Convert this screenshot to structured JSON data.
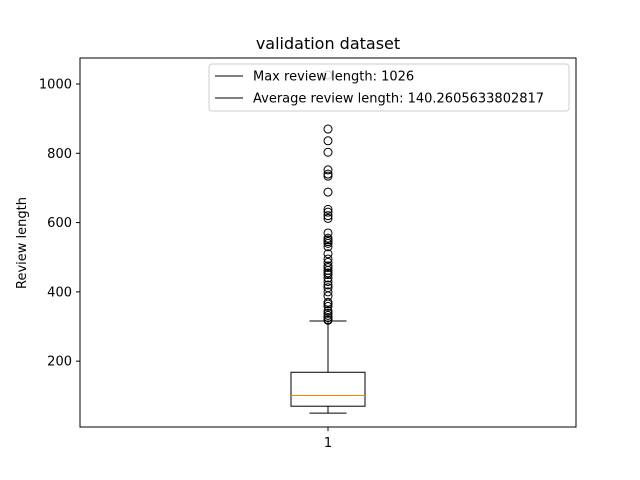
{
  "chart_data": {
    "type": "box",
    "title": "validation dataset",
    "xlabel": "",
    "ylabel": "Review length",
    "x_ticks": [
      "1"
    ],
    "y_ticks": [
      200,
      400,
      600,
      800,
      1000
    ],
    "ylim": [
      10,
      1075
    ],
    "legend_placement": "top-right",
    "legend": [
      {
        "label": "Max review length: 1026"
      },
      {
        "label": "Average review length: 140.2605633802817"
      }
    ],
    "boxes": [
      {
        "category": "1",
        "whisker_low": 50,
        "q1": 70,
        "median": 101,
        "q3": 168,
        "whisker_high": 316,
        "outliers": [
          1026,
          870,
          836,
          803,
          752,
          740,
          734,
          688,
          638,
          630,
          620,
          612,
          570,
          555,
          550,
          545,
          540,
          530,
          510,
          495,
          485,
          475,
          470,
          462,
          455,
          450,
          440,
          430,
          420,
          412,
          400,
          388,
          370,
          365,
          358,
          345,
          338,
          332,
          326,
          320,
          318
        ]
      }
    ],
    "colors": {
      "box": "#000000",
      "median": "#ff7f0e",
      "outlier": "#000000"
    }
  }
}
